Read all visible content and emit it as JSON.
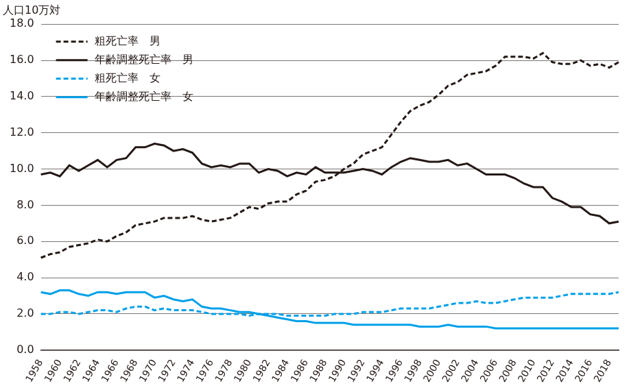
{
  "chart_data": {
    "type": "line",
    "ylabel": "人口10万対",
    "categories": [
      "1958",
      null,
      "1960",
      null,
      "1962",
      null,
      "1964",
      null,
      "1966",
      null,
      "1968",
      null,
      "1970",
      null,
      "1972",
      null,
      "1974",
      null,
      "1976",
      null,
      "1978",
      null,
      "1980",
      null,
      "1982",
      null,
      "1984",
      null,
      "1986",
      null,
      "1988",
      null,
      "1990",
      null,
      "1992",
      null,
      "1994",
      null,
      "1996",
      null,
      "1998",
      null,
      "2000",
      null,
      "2002",
      null,
      "2004",
      null,
      "2006",
      null,
      "2008",
      null,
      "2010",
      null,
      "2012",
      null,
      "2014",
      null,
      "2016",
      null,
      "2018",
      null
    ],
    "series": [
      {
        "name": "粗死亡率　男",
        "color": "#231815",
        "line_style": "dashed",
        "values": [
          5.1,
          5.3,
          5.4,
          5.7,
          5.8,
          5.9,
          6.1,
          6.0,
          6.3,
          6.5,
          6.9,
          7.0,
          7.1,
          7.3,
          7.3,
          7.3,
          7.4,
          7.2,
          7.1,
          7.2,
          7.3,
          7.6,
          7.9,
          7.8,
          8.1,
          8.2,
          8.2,
          8.6,
          8.8,
          9.3,
          9.4,
          9.6,
          10.0,
          10.3,
          10.8,
          11.0,
          11.2,
          11.9,
          12.6,
          13.2,
          13.5,
          13.7,
          14.1,
          14.6,
          14.8,
          15.2,
          15.3,
          15.4,
          15.7,
          16.2,
          16.2,
          16.2,
          16.1,
          16.4,
          15.9,
          15.8,
          15.8,
          16.0,
          15.7,
          15.8,
          15.6,
          15.9
        ]
      },
      {
        "name": "年齢調整死亡率　男",
        "color": "#231815",
        "line_style": "solid",
        "values": [
          9.7,
          9.8,
          9.6,
          10.2,
          9.9,
          10.2,
          10.5,
          10.1,
          10.5,
          10.6,
          11.2,
          11.2,
          11.4,
          11.3,
          11.0,
          11.1,
          10.9,
          10.3,
          10.1,
          10.2,
          10.1,
          10.3,
          10.3,
          9.8,
          10.0,
          9.9,
          9.6,
          9.8,
          9.7,
          10.1,
          9.8,
          9.8,
          9.8,
          9.9,
          10.0,
          9.9,
          9.7,
          10.1,
          10.4,
          10.6,
          10.5,
          10.4,
          10.4,
          10.5,
          10.2,
          10.3,
          10.0,
          9.7,
          9.7,
          9.7,
          9.5,
          9.2,
          9.0,
          9.0,
          8.4,
          8.2,
          7.9,
          7.9,
          7.5,
          7.4,
          7.0,
          7.1
        ]
      },
      {
        "name": "粗死亡率　女",
        "color": "#00a0e9",
        "line_style": "dashed",
        "values": [
          2.0,
          2.0,
          2.1,
          2.1,
          2.0,
          2.1,
          2.2,
          2.2,
          2.1,
          2.3,
          2.4,
          2.4,
          2.2,
          2.3,
          2.2,
          2.2,
          2.2,
          2.1,
          2.0,
          2.0,
          2.0,
          2.0,
          1.9,
          2.0,
          2.0,
          2.0,
          1.9,
          1.9,
          1.9,
          1.9,
          1.9,
          2.0,
          2.0,
          2.0,
          2.1,
          2.1,
          2.1,
          2.2,
          2.3,
          2.3,
          2.3,
          2.3,
          2.4,
          2.5,
          2.6,
          2.6,
          2.7,
          2.6,
          2.6,
          2.7,
          2.8,
          2.9,
          2.9,
          2.9,
          2.9,
          3.0,
          3.1,
          3.1,
          3.1,
          3.1,
          3.1,
          3.2
        ]
      },
      {
        "name": "年齢調整死亡率　女",
        "color": "#00a0e9",
        "line_style": "solid",
        "values": [
          3.2,
          3.1,
          3.3,
          3.3,
          3.1,
          3.0,
          3.2,
          3.2,
          3.1,
          3.2,
          3.2,
          3.2,
          2.9,
          3.0,
          2.8,
          2.7,
          2.8,
          2.4,
          2.3,
          2.3,
          2.2,
          2.1,
          2.1,
          2.0,
          1.9,
          1.8,
          1.7,
          1.6,
          1.6,
          1.5,
          1.5,
          1.5,
          1.5,
          1.4,
          1.4,
          1.4,
          1.4,
          1.4,
          1.4,
          1.4,
          1.3,
          1.3,
          1.3,
          1.4,
          1.3,
          1.3,
          1.3,
          1.3,
          1.2,
          1.2,
          1.2,
          1.2,
          1.2,
          1.2,
          1.2,
          1.2,
          1.2,
          1.2,
          1.2,
          1.2,
          1.2,
          1.2
        ]
      }
    ],
    "ylim": [
      0,
      18
    ],
    "yticks": [
      {
        "value": 0,
        "label": "0.0"
      },
      {
        "value": 2,
        "label": "2.0"
      },
      {
        "value": 4,
        "label": "4.0"
      },
      {
        "value": 6,
        "label": "6.0"
      },
      {
        "value": 8,
        "label": "8.0"
      },
      {
        "value": 10,
        "label": "10.0"
      },
      {
        "value": 12,
        "label": "12.0"
      },
      {
        "value": 14,
        "label": "14.0"
      },
      {
        "value": 16,
        "label": "16.0"
      },
      {
        "value": 18,
        "label": "18.0"
      }
    ],
    "grid": true,
    "legend": "upper left"
  }
}
